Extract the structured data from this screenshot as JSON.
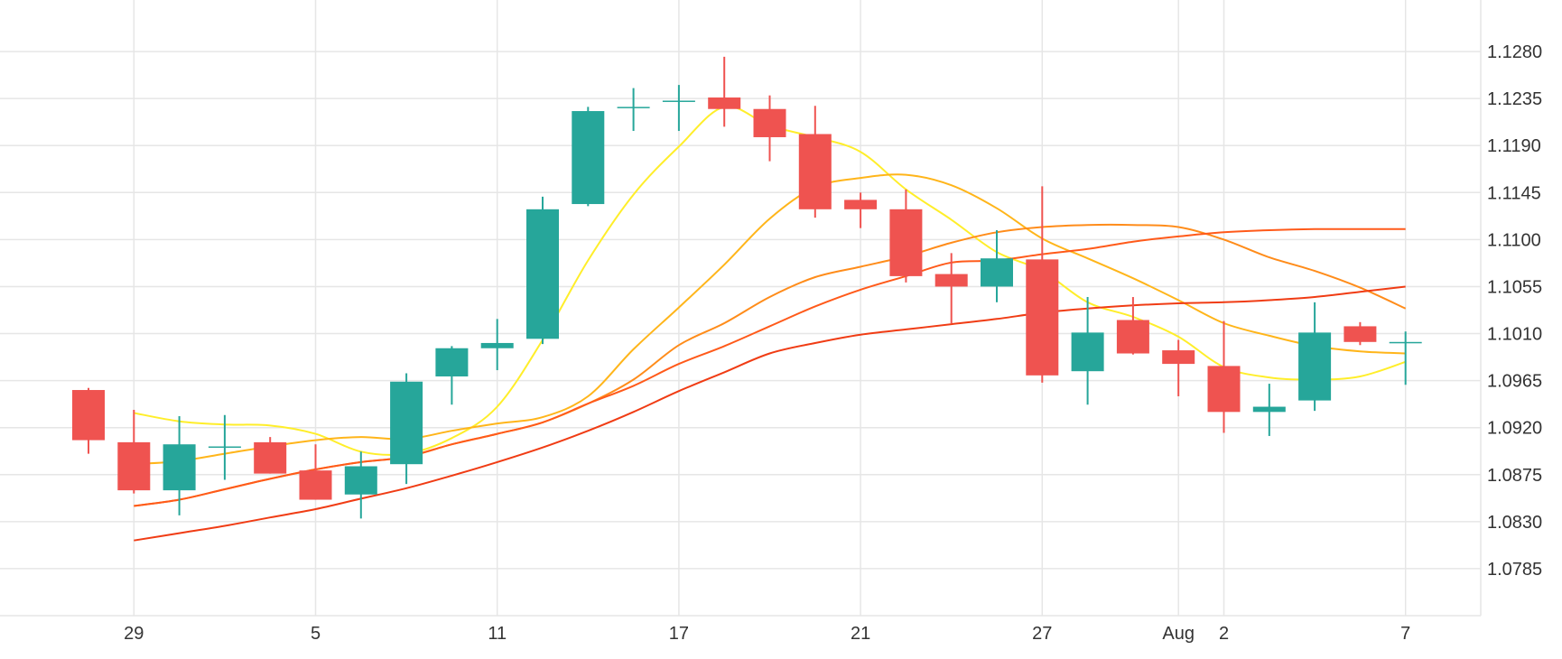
{
  "chart_data": {
    "type": "candlestick",
    "title": "",
    "xlabel": "",
    "ylabel": "",
    "ylim": [
      1.074,
      1.1325
    ],
    "y_ticks": [
      "1.1280",
      "1.1235",
      "1.1190",
      "1.1145",
      "1.1100",
      "1.1055",
      "1.1010",
      "1.0965",
      "1.0920",
      "1.0875",
      "1.0830",
      "1.0785"
    ],
    "x_tick_labels": [
      {
        "label": "29",
        "index": 1
      },
      {
        "label": "5",
        "index": 5
      },
      {
        "label": "11",
        "index": 9
      },
      {
        "label": "17",
        "index": 13
      },
      {
        "label": "21",
        "index": 17
      },
      {
        "label": "27",
        "index": 21
      },
      {
        "label": "Aug",
        "index": 24
      },
      {
        "label": "2",
        "index": 25
      },
      {
        "label": "7",
        "index": 29
      }
    ],
    "grid": true,
    "legend": "none",
    "colors": {
      "up": "#26a69a",
      "down": "#ef5350",
      "ma_5": "#ffee2a",
      "ma_10": "#ffb51a",
      "ma_15": "#ff8c1a",
      "ma_20": "#ff5a1a",
      "ma_30": "#f03c14"
    },
    "candles": [
      {
        "open": 1.0956,
        "high": 1.0958,
        "low": 1.0895,
        "close": 1.0908
      },
      {
        "open": 1.0906,
        "high": 1.0937,
        "low": 1.0857,
        "close": 1.086
      },
      {
        "open": 1.086,
        "high": 1.0931,
        "low": 1.0836,
        "close": 1.0904
      },
      {
        "open": 1.0901,
        "high": 1.0932,
        "low": 1.087,
        "close": 1.0902
      },
      {
        "open": 1.0906,
        "high": 1.0911,
        "low": 1.0876,
        "close": 1.0876
      },
      {
        "open": 1.0879,
        "high": 1.0904,
        "low": 1.0851,
        "close": 1.0851
      },
      {
        "open": 1.0856,
        "high": 1.0897,
        "low": 1.0833,
        "close": 1.0883
      },
      {
        "open": 1.0885,
        "high": 1.0972,
        "low": 1.0866,
        "close": 1.0964
      },
      {
        "open": 1.0969,
        "high": 1.0998,
        "low": 1.0942,
        "close": 1.0996
      },
      {
        "open": 1.0996,
        "high": 1.1024,
        "low": 1.0975,
        "close": 1.1001
      },
      {
        "open": 1.1005,
        "high": 1.1141,
        "low": 1.1,
        "close": 1.1129
      },
      {
        "open": 1.1134,
        "high": 1.1227,
        "low": 1.1132,
        "close": 1.1223
      },
      {
        "open": 1.1227,
        "high": 1.1245,
        "low": 1.1204,
        "close": 1.1227
      },
      {
        "open": 1.1233,
        "high": 1.1248,
        "low": 1.1204,
        "close": 1.1233
      },
      {
        "open": 1.1236,
        "high": 1.1275,
        "low": 1.1208,
        "close": 1.1225
      },
      {
        "open": 1.1225,
        "high": 1.1238,
        "low": 1.1175,
        "close": 1.1198
      },
      {
        "open": 1.1201,
        "high": 1.1228,
        "low": 1.1121,
        "close": 1.1129
      },
      {
        "open": 1.1138,
        "high": 1.1145,
        "low": 1.1111,
        "close": 1.1129
      },
      {
        "open": 1.1129,
        "high": 1.1148,
        "low": 1.1059,
        "close": 1.1065
      },
      {
        "open": 1.1067,
        "high": 1.1087,
        "low": 1.102,
        "close": 1.1055
      },
      {
        "open": 1.1055,
        "high": 1.1109,
        "low": 1.104,
        "close": 1.1082
      },
      {
        "open": 1.1081,
        "high": 1.1151,
        "low": 1.0963,
        "close": 1.097
      },
      {
        "open": 1.0974,
        "high": 1.1045,
        "low": 1.0942,
        "close": 1.1011
      },
      {
        "open": 1.1023,
        "high": 1.1045,
        "low": 1.099,
        "close": 1.0991
      },
      {
        "open": 1.0994,
        "high": 1.1004,
        "low": 1.095,
        "close": 1.0981
      },
      {
        "open": 1.0979,
        "high": 1.1022,
        "low": 1.0915,
        "close": 1.0935
      },
      {
        "open": 1.0935,
        "high": 1.0962,
        "low": 1.0912,
        "close": 1.094
      },
      {
        "open": 1.0946,
        "high": 1.104,
        "low": 1.0936,
        "close": 1.1011
      },
      {
        "open": 1.1017,
        "high": 1.1021,
        "low": 1.0999,
        "close": 1.1002
      },
      {
        "open": 1.1002,
        "high": 1.1012,
        "low": 1.0961,
        "close": 1.1002
      }
    ],
    "moving_averages": [
      {
        "key": "ma_5",
        "values": [
          null,
          1.0934,
          1.0926,
          1.0923,
          1.0922,
          1.0914,
          1.0897,
          1.0895,
          1.091,
          1.094,
          1.1004,
          1.108,
          1.1143,
          1.1189,
          1.1227,
          1.1209,
          1.1198,
          1.1184,
          1.1148,
          1.1119,
          1.1088,
          1.107,
          1.104,
          1.1026,
          1.1007,
          1.0978,
          1.0968,
          1.0966,
          1.0969,
          1.0983
        ]
      },
      {
        "key": "ma_10",
        "values": [
          null,
          1.0885,
          1.0888,
          1.0895,
          1.0902,
          1.0908,
          1.0911,
          1.0909,
          1.0917,
          1.0924,
          1.093,
          1.095,
          1.0995,
          1.1035,
          1.1076,
          1.112,
          1.115,
          1.1159,
          1.1162,
          1.1152,
          1.113,
          1.1101,
          1.1082,
          1.1063,
          1.1042,
          1.102,
          1.1008,
          1.0998,
          1.0993,
          1.0991
        ]
      },
      {
        "key": "ma_15",
        "values": [
          null,
          1.0845,
          1.0851,
          1.0861,
          1.0871,
          1.088,
          1.0887,
          1.0892,
          1.0904,
          1.0914,
          1.0925,
          1.0943,
          1.0966,
          1.0999,
          1.102,
          1.1045,
          1.1064,
          1.1074,
          1.1084,
          1.1097,
          1.1107,
          1.1112,
          1.1114,
          1.1114,
          1.1112,
          1.11,
          1.1083,
          1.107,
          1.1054,
          1.1034
        ]
      },
      {
        "key": "ma_20",
        "values": [
          null,
          1.0845,
          1.0851,
          1.0861,
          1.0871,
          1.088,
          1.0887,
          1.0892,
          1.0904,
          1.0914,
          1.0925,
          1.0943,
          1.096,
          1.0981,
          1.0998,
          1.1017,
          1.1036,
          1.1052,
          1.1065,
          1.1078,
          1.108,
          1.1086,
          1.1091,
          1.1098,
          1.1103,
          1.1107,
          1.1109,
          1.111,
          1.111,
          1.111
        ]
      },
      {
        "key": "ma_30",
        "values": [
          null,
          1.0812,
          1.0819,
          1.0826,
          1.0834,
          1.0842,
          1.0852,
          1.0862,
          1.0874,
          1.0887,
          1.0901,
          1.0917,
          1.0935,
          1.0955,
          1.0973,
          1.0991,
          1.1001,
          1.1009,
          1.1014,
          1.1019,
          1.1024,
          1.103,
          1.1034,
          1.1037,
          1.1039,
          1.104,
          1.1042,
          1.1045,
          1.105,
          1.1055
        ]
      }
    ]
  }
}
